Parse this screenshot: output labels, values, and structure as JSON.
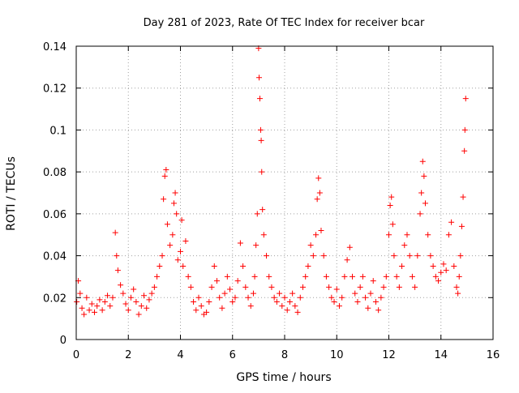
{
  "chart_data": {
    "type": "scatter",
    "title": "Day 281 of 2023, Rate Of TEC Index for receiver bcar",
    "xlabel": "GPS time / hours",
    "ylabel": "ROTI / TECUs",
    "xlim": [
      0,
      16
    ],
    "ylim": [
      0,
      0.14
    ],
    "x_ticks": [
      0,
      2,
      4,
      6,
      8,
      10,
      12,
      14,
      16
    ],
    "x_tick_labels": [
      "0",
      "2",
      "4",
      "6",
      "8",
      "10",
      "12",
      "14",
      "16"
    ],
    "y_ticks": [
      0,
      0.02,
      0.04,
      0.06,
      0.08,
      0.1,
      0.12,
      0.14
    ],
    "y_tick_labels": [
      "0",
      "0.02",
      "0.04",
      "0.06",
      "0.08",
      "0.1",
      "0.12",
      "0.14"
    ],
    "grid": true,
    "marker": "+",
    "color": "#ff0000",
    "series": [
      {
        "name": "ROTI",
        "points": [
          [
            0.02,
            0.018
          ],
          [
            0.08,
            0.028
          ],
          [
            0.15,
            0.022
          ],
          [
            0.22,
            0.015
          ],
          [
            0.3,
            0.012
          ],
          [
            0.4,
            0.02
          ],
          [
            0.5,
            0.014
          ],
          [
            0.6,
            0.017
          ],
          [
            0.7,
            0.013
          ],
          [
            0.8,
            0.016
          ],
          [
            0.9,
            0.019
          ],
          [
            1.0,
            0.014
          ],
          [
            1.1,
            0.018
          ],
          [
            1.2,
            0.021
          ],
          [
            1.3,
            0.016
          ],
          [
            1.4,
            0.02
          ],
          [
            1.5,
            0.051
          ],
          [
            1.55,
            0.04
          ],
          [
            1.6,
            0.033
          ],
          [
            1.7,
            0.026
          ],
          [
            1.8,
            0.022
          ],
          [
            1.9,
            0.017
          ],
          [
            2.0,
            0.014
          ],
          [
            2.1,
            0.02
          ],
          [
            2.2,
            0.024
          ],
          [
            2.3,
            0.018
          ],
          [
            2.4,
            0.012
          ],
          [
            2.5,
            0.016
          ],
          [
            2.6,
            0.021
          ],
          [
            2.7,
            0.015
          ],
          [
            2.8,
            0.019
          ],
          [
            2.9,
            0.022
          ],
          [
            3.0,
            0.025
          ],
          [
            3.1,
            0.03
          ],
          [
            3.2,
            0.035
          ],
          [
            3.3,
            0.04
          ],
          [
            3.35,
            0.067
          ],
          [
            3.4,
            0.078
          ],
          [
            3.45,
            0.081
          ],
          [
            3.5,
            0.055
          ],
          [
            3.6,
            0.045
          ],
          [
            3.7,
            0.05
          ],
          [
            3.75,
            0.065
          ],
          [
            3.8,
            0.07
          ],
          [
            3.85,
            0.06
          ],
          [
            3.9,
            0.038
          ],
          [
            4.0,
            0.042
          ],
          [
            4.05,
            0.057
          ],
          [
            4.1,
            0.035
          ],
          [
            4.2,
            0.047
          ],
          [
            4.3,
            0.03
          ],
          [
            4.4,
            0.025
          ],
          [
            4.5,
            0.018
          ],
          [
            4.6,
            0.014
          ],
          [
            4.7,
            0.02
          ],
          [
            4.8,
            0.016
          ],
          [
            4.9,
            0.012
          ],
          [
            5.0,
            0.013
          ],
          [
            5.1,
            0.018
          ],
          [
            5.2,
            0.025
          ],
          [
            5.3,
            0.035
          ],
          [
            5.4,
            0.028
          ],
          [
            5.5,
            0.02
          ],
          [
            5.6,
            0.015
          ],
          [
            5.7,
            0.022
          ],
          [
            5.8,
            0.03
          ],
          [
            5.9,
            0.024
          ],
          [
            6.0,
            0.018
          ],
          [
            6.1,
            0.02
          ],
          [
            6.2,
            0.028
          ],
          [
            6.3,
            0.046
          ],
          [
            6.4,
            0.035
          ],
          [
            6.5,
            0.025
          ],
          [
            6.6,
            0.02
          ],
          [
            6.7,
            0.016
          ],
          [
            6.8,
            0.022
          ],
          [
            6.85,
            0.03
          ],
          [
            6.9,
            0.045
          ],
          [
            6.95,
            0.06
          ],
          [
            7.0,
            0.139
          ],
          [
            7.02,
            0.125
          ],
          [
            7.05,
            0.115
          ],
          [
            7.08,
            0.1
          ],
          [
            7.1,
            0.095
          ],
          [
            7.12,
            0.08
          ],
          [
            7.15,
            0.062
          ],
          [
            7.2,
            0.05
          ],
          [
            7.3,
            0.04
          ],
          [
            7.4,
            0.03
          ],
          [
            7.5,
            0.025
          ],
          [
            7.6,
            0.02
          ],
          [
            7.7,
            0.018
          ],
          [
            7.8,
            0.022
          ],
          [
            7.9,
            0.016
          ],
          [
            8.0,
            0.02
          ],
          [
            8.1,
            0.014
          ],
          [
            8.2,
            0.018
          ],
          [
            8.3,
            0.022
          ],
          [
            8.4,
            0.016
          ],
          [
            8.5,
            0.013
          ],
          [
            8.6,
            0.02
          ],
          [
            8.7,
            0.025
          ],
          [
            8.8,
            0.03
          ],
          [
            8.9,
            0.035
          ],
          [
            9.0,
            0.045
          ],
          [
            9.1,
            0.04
          ],
          [
            9.2,
            0.05
          ],
          [
            9.25,
            0.067
          ],
          [
            9.3,
            0.077
          ],
          [
            9.35,
            0.07
          ],
          [
            9.4,
            0.052
          ],
          [
            9.5,
            0.04
          ],
          [
            9.6,
            0.03
          ],
          [
            9.7,
            0.025
          ],
          [
            9.8,
            0.02
          ],
          [
            9.9,
            0.018
          ],
          [
            10.0,
            0.024
          ],
          [
            10.1,
            0.016
          ],
          [
            10.2,
            0.02
          ],
          [
            10.3,
            0.03
          ],
          [
            10.4,
            0.038
          ],
          [
            10.5,
            0.044
          ],
          [
            10.6,
            0.03
          ],
          [
            10.7,
            0.022
          ],
          [
            10.8,
            0.018
          ],
          [
            10.9,
            0.025
          ],
          [
            11.0,
            0.03
          ],
          [
            11.1,
            0.02
          ],
          [
            11.2,
            0.015
          ],
          [
            11.3,
            0.022
          ],
          [
            11.4,
            0.028
          ],
          [
            11.5,
            0.018
          ],
          [
            11.6,
            0.014
          ],
          [
            11.7,
            0.02
          ],
          [
            11.8,
            0.025
          ],
          [
            11.9,
            0.03
          ],
          [
            12.0,
            0.05
          ],
          [
            12.05,
            0.064
          ],
          [
            12.1,
            0.068
          ],
          [
            12.15,
            0.055
          ],
          [
            12.2,
            0.04
          ],
          [
            12.3,
            0.03
          ],
          [
            12.4,
            0.025
          ],
          [
            12.5,
            0.035
          ],
          [
            12.6,
            0.045
          ],
          [
            12.7,
            0.05
          ],
          [
            12.8,
            0.04
          ],
          [
            12.9,
            0.03
          ],
          [
            13.0,
            0.025
          ],
          [
            13.1,
            0.04
          ],
          [
            13.2,
            0.06
          ],
          [
            13.25,
            0.07
          ],
          [
            13.3,
            0.085
          ],
          [
            13.35,
            0.078
          ],
          [
            13.4,
            0.065
          ],
          [
            13.5,
            0.05
          ],
          [
            13.6,
            0.04
          ],
          [
            13.7,
            0.035
          ],
          [
            13.8,
            0.03
          ],
          [
            13.9,
            0.028
          ],
          [
            14.0,
            0.032
          ],
          [
            14.1,
            0.036
          ],
          [
            14.2,
            0.033
          ],
          [
            14.3,
            0.05
          ],
          [
            14.4,
            0.056
          ],
          [
            14.5,
            0.035
          ],
          [
            14.6,
            0.025
          ],
          [
            14.65,
            0.022
          ],
          [
            14.7,
            0.03
          ],
          [
            14.75,
            0.04
          ],
          [
            14.8,
            0.054
          ],
          [
            14.85,
            0.068
          ],
          [
            14.9,
            0.09
          ],
          [
            14.92,
            0.1
          ],
          [
            14.95,
            0.115
          ]
        ]
      }
    ]
  }
}
